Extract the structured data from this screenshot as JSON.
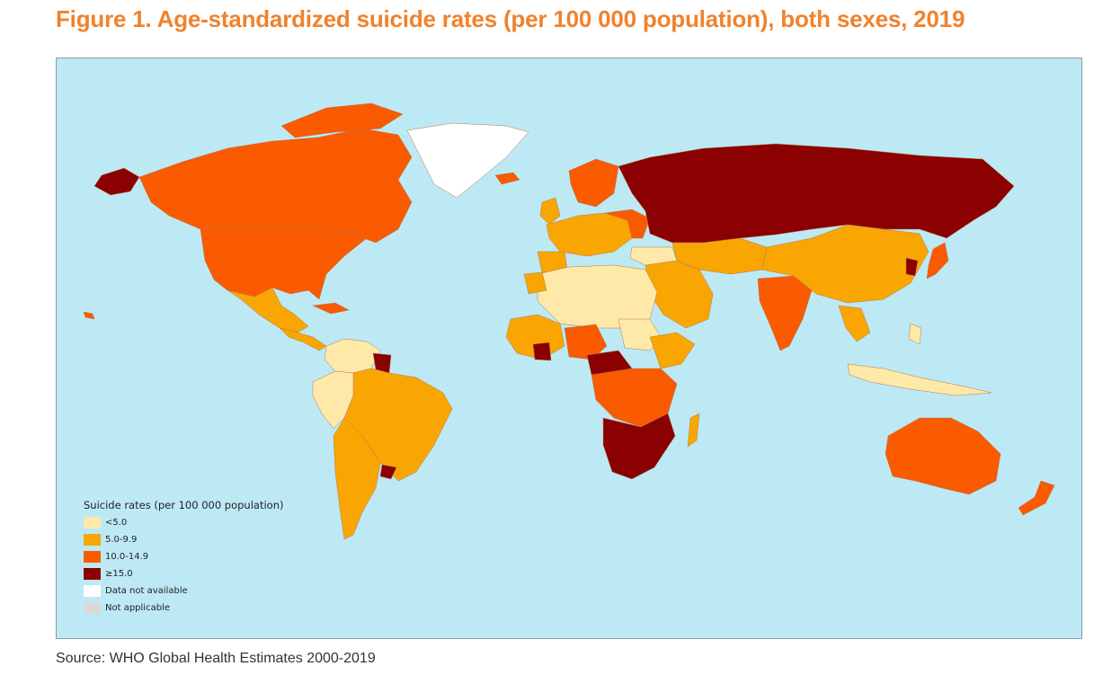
{
  "figure": {
    "title": "Figure 1. Age-standardized suicide rates (per 100 000 population), both sexes, 2019",
    "source": "Source: WHO Global Health Estimates 2000-2019"
  },
  "colors": {
    "ocean": "#BDE9F5",
    "title": "#F0822D",
    "lt5": "#FFE9A8",
    "r5_9": "#F9A602",
    "r10_14": "#FA5A00",
    "ge15": "#8B0000",
    "na": "#FFFFFF",
    "notapp": "#D9D9D9"
  },
  "legend": {
    "title": "Suicide rates (per 100 000 population)",
    "items": [
      {
        "key": "lt5",
        "label": "<5.0",
        "color": "#FFE9A8"
      },
      {
        "key": "r5_9",
        "label": "5.0-9.9",
        "color": "#F9A602"
      },
      {
        "key": "r10_14",
        "label": "10.0-14.9",
        "color": "#FA5A00"
      },
      {
        "key": "ge15",
        "label": "≥15.0",
        "color": "#8B0000"
      },
      {
        "key": "na",
        "label": "Data not available",
        "color": "#FFFFFF"
      },
      {
        "key": "notapp",
        "label": "Not applicable",
        "color": "#D9D9D9"
      }
    ]
  }
}
